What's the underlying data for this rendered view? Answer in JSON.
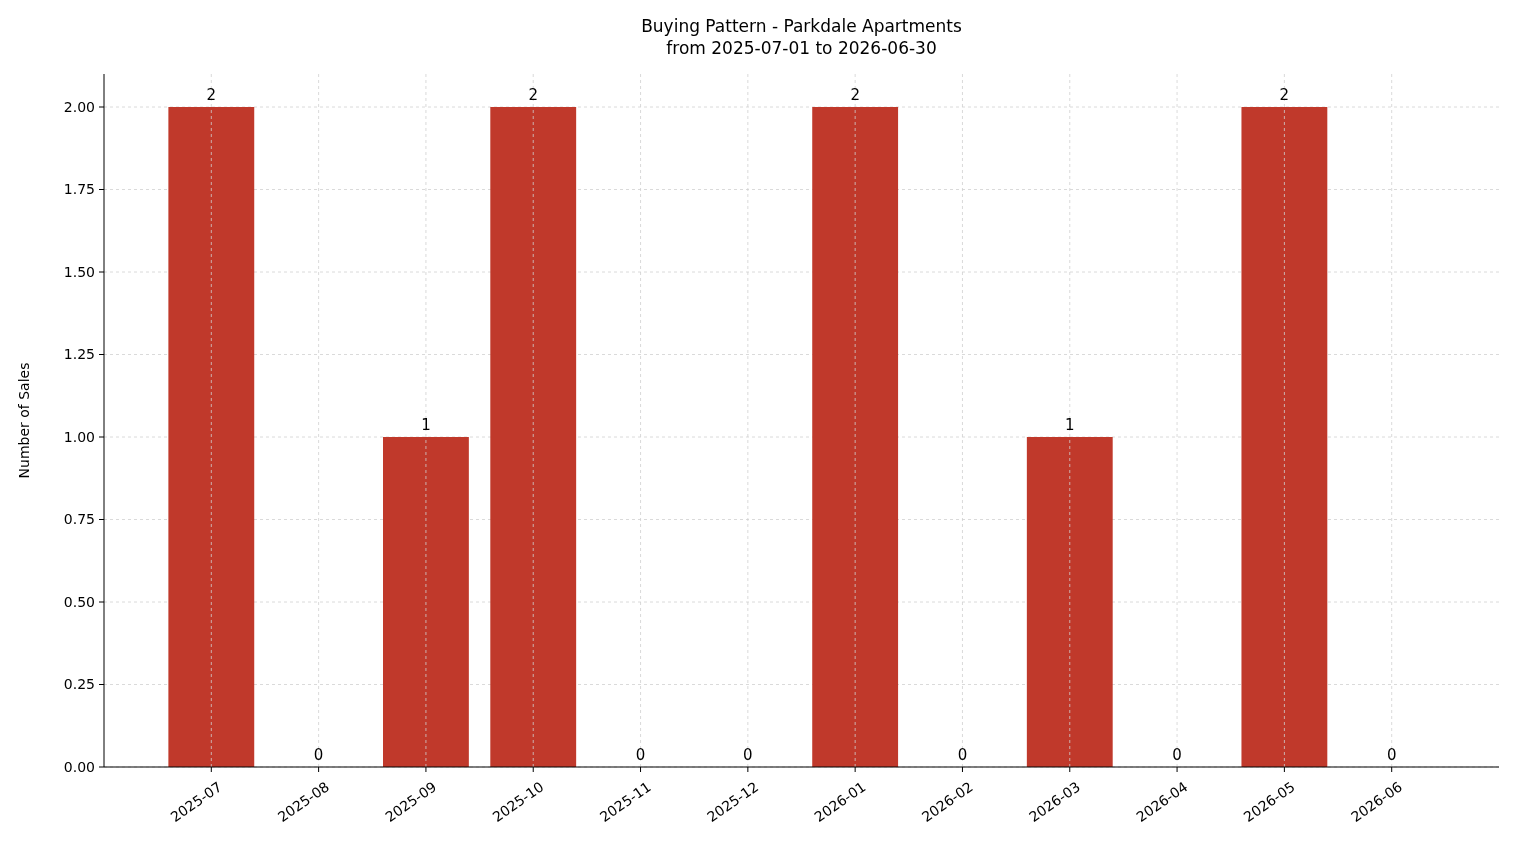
{
  "chart_data": {
    "type": "bar",
    "title": "Buying Pattern - Parkdale Apartments\nfrom 2025-07-01 to 2026-06-30",
    "ylabel": "Number of Sales",
    "categories": [
      "2025-07",
      "2025-08",
      "2025-09",
      "2025-10",
      "2025-11",
      "2025-12",
      "2026-01",
      "2026-02",
      "2026-03",
      "2026-04",
      "2026-05",
      "2026-06"
    ],
    "values": [
      2,
      0,
      1,
      2,
      0,
      0,
      2,
      0,
      1,
      0,
      2,
      0
    ],
    "color": "#c0392b",
    "ylim": [
      0,
      2.1
    ],
    "yticks": [
      {
        "value": 0,
        "label": "0.00"
      },
      {
        "value": 0.25,
        "label": "0.25"
      },
      {
        "value": 0.5,
        "label": "0.50"
      },
      {
        "value": 0.75,
        "label": "0.75"
      },
      {
        "value": 1,
        "label": "1.00"
      },
      {
        "value": 1.25,
        "label": "1.25"
      },
      {
        "value": 1.5,
        "label": "1.50"
      },
      {
        "value": 1.75,
        "label": "1.75"
      },
      {
        "value": 2,
        "label": "2.00"
      }
    ],
    "grid": true,
    "data_labels": true
  }
}
